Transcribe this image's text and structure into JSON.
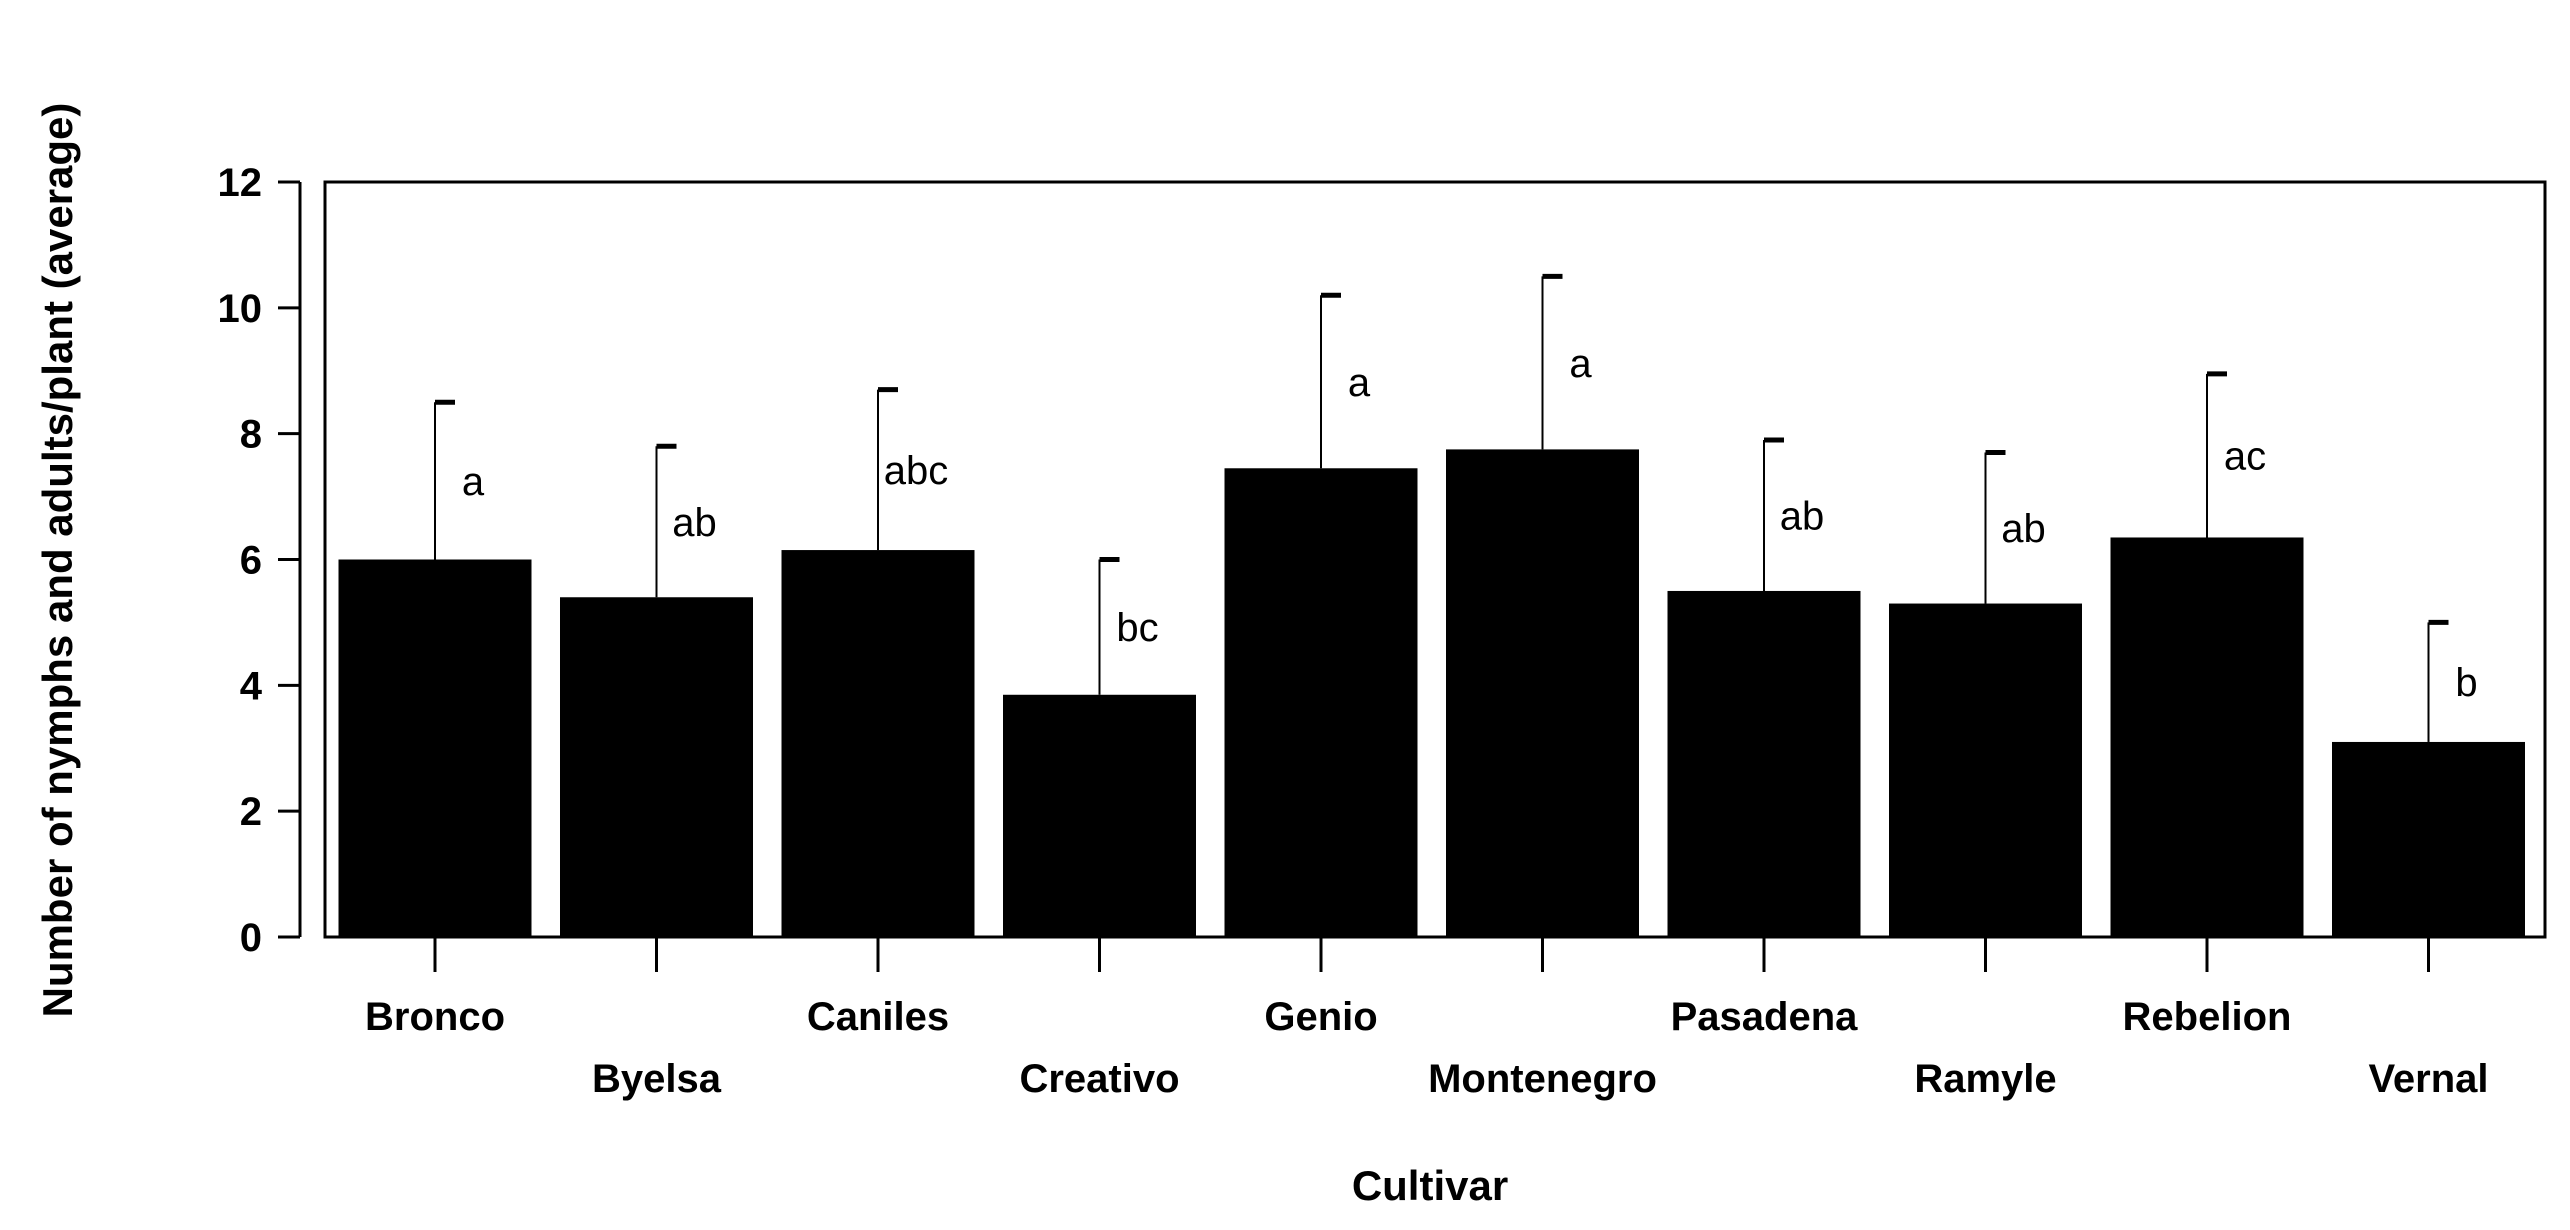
{
  "chart_data": {
    "type": "bar",
    "xlabel": "Cultivar",
    "ylabel": "Number of nymphs and adults/plant (average)",
    "ylim": [
      0,
      12
    ],
    "yticks": [
      "0",
      "2",
      "4",
      "6",
      "8",
      "10",
      "12"
    ],
    "categories": [
      "Bronco",
      "Byelsa",
      "Caniles",
      "Creativo",
      "Genio",
      "Montenegro",
      "Pasadena",
      "Ramyle",
      "Rebelion",
      "Vernal"
    ],
    "values": [
      6.0,
      5.4,
      6.15,
      3.85,
      7.45,
      7.75,
      5.5,
      5.3,
      6.35,
      3.1
    ],
    "error_upper": [
      8.5,
      7.8,
      8.7,
      6.0,
      10.2,
      10.5,
      7.9,
      7.7,
      8.95,
      5.0
    ],
    "significance_letters": [
      "a",
      "ab",
      "abc",
      "bc",
      "a",
      "a",
      "ab",
      "ab",
      "ac",
      "b"
    ],
    "bar_color": "#000000",
    "grid": false,
    "legend": "none"
  }
}
